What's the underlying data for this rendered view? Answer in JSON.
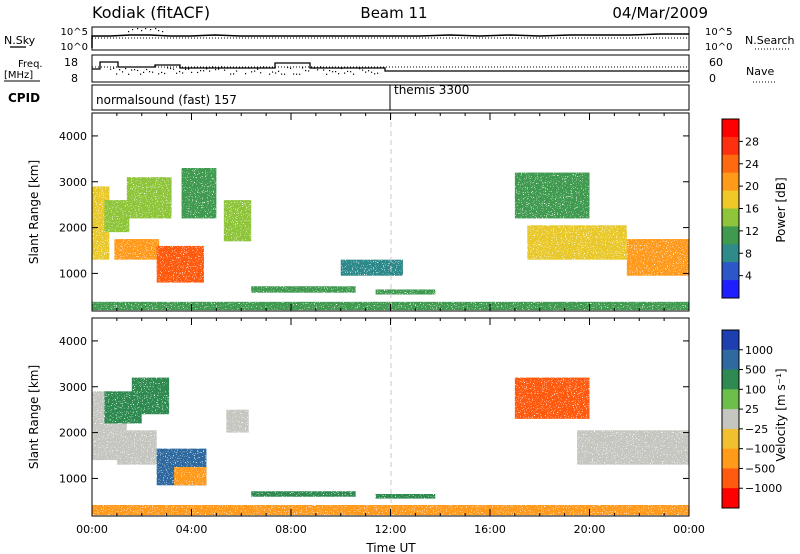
{
  "header": {
    "station": "Kodiak (fitACF)",
    "beam": "Beam 11",
    "date": "04/Mar/2009"
  },
  "top_panels": {
    "nsky": {
      "left_label": "N.Sky",
      "right_label": "N.Search",
      "left_ticks": [
        "10^5",
        "10^0"
      ],
      "right_ticks": [
        "10^5",
        "10^0"
      ]
    },
    "freq": {
      "left_label_line1": "Freq.",
      "left_label_line2": "[MHz]",
      "right_label": "Nave",
      "left_ticks": [
        "18",
        "8"
      ],
      "right_ticks": [
        "60",
        "0"
      ]
    },
    "cpid": {
      "label": "CPID",
      "modes": [
        {
          "name": "normalsound (fast) 157",
          "start_h": 0
        },
        {
          "name": "themis 3300",
          "start_h": 12
        }
      ]
    }
  },
  "chart_data": [
    {
      "type": "heatmap",
      "name": "Power",
      "xlabel": "",
      "ylabel": "Slant Range [km]",
      "xlim": [
        0,
        24
      ],
      "ylim": [
        180,
        4500
      ],
      "yticks": [
        "1000",
        "2000",
        "3000",
        "4000"
      ],
      "colorbar": {
        "label": "Power [dB]",
        "ticks": [
          "28",
          "24",
          "20",
          "16",
          "12",
          "8",
          "4"
        ],
        "range": [
          0,
          30
        ]
      },
      "regions": [
        {
          "x": [
            0.0,
            0.7
          ],
          "y": [
            1300,
            2900
          ],
          "value": 18
        },
        {
          "x": [
            0.5,
            1.5
          ],
          "y": [
            1900,
            2600
          ],
          "value": 14
        },
        {
          "x": [
            1.4,
            3.2
          ],
          "y": [
            2200,
            3100
          ],
          "value": 16
        },
        {
          "x": [
            0.9,
            2.7
          ],
          "y": [
            1300,
            1750
          ],
          "value": 22
        },
        {
          "x": [
            2.6,
            4.5
          ],
          "y": [
            800,
            1600
          ],
          "value": 27
        },
        {
          "x": [
            3.6,
            5.0
          ],
          "y": [
            2200,
            3300
          ],
          "value": 12
        },
        {
          "x": [
            5.3,
            6.4
          ],
          "y": [
            1700,
            2600
          ],
          "value": 14
        },
        {
          "x": [
            6.4,
            10.6
          ],
          "y": [
            580,
            720
          ],
          "value": 12
        },
        {
          "x": [
            11.4,
            13.8
          ],
          "y": [
            540,
            650
          ],
          "value": 10
        },
        {
          "x": [
            10.0,
            12.5
          ],
          "y": [
            950,
            1300
          ],
          "value": 8
        },
        {
          "x": [
            17.0,
            20.0
          ],
          "y": [
            2200,
            3200
          ],
          "value": 12
        },
        {
          "x": [
            17.5,
            21.5
          ],
          "y": [
            1300,
            2050
          ],
          "value": 19
        },
        {
          "x": [
            21.5,
            24.0
          ],
          "y": [
            950,
            1750
          ],
          "value": 24
        },
        {
          "x": [
            0.0,
            24.0
          ],
          "y": [
            200,
            380
          ],
          "value": 12
        }
      ]
    },
    {
      "type": "heatmap",
      "name": "Velocity",
      "xlabel": "Time UT",
      "ylabel": "Slant Range [km]",
      "xlim": [
        0,
        24
      ],
      "ylim": [
        180,
        4500
      ],
      "xticks": [
        "00:00",
        "04:00",
        "08:00",
        "12:00",
        "16:00",
        "20:00",
        "00:00"
      ],
      "yticks": [
        "1000",
        "2000",
        "3000",
        "4000"
      ],
      "colorbar": {
        "label": "Velocity [m s⁻¹]",
        "ticks": [
          "1000",
          "500",
          "100",
          "25",
          "−25",
          "−100",
          "−500",
          "−1000"
        ]
      },
      "regions": [
        {
          "x": [
            0.0,
            1.4
          ],
          "y": [
            1400,
            2900
          ],
          "value": 0
        },
        {
          "x": [
            0.5,
            2.0
          ],
          "y": [
            2200,
            2900
          ],
          "value": 150
        },
        {
          "x": [
            1.6,
            3.1
          ],
          "y": [
            2400,
            3200
          ],
          "value": 250
        },
        {
          "x": [
            1.0,
            2.6
          ],
          "y": [
            1300,
            2050
          ],
          "value": 0
        },
        {
          "x": [
            2.6,
            4.6
          ],
          "y": [
            850,
            1650
          ],
          "value": 350
        },
        {
          "x": [
            3.3,
            4.6
          ],
          "y": [
            850,
            1250
          ],
          "value": -200
        },
        {
          "x": [
            5.4,
            6.3
          ],
          "y": [
            2000,
            2500
          ],
          "value": 0
        },
        {
          "x": [
            6.4,
            10.6
          ],
          "y": [
            600,
            720
          ],
          "value": 200
        },
        {
          "x": [
            11.4,
            13.8
          ],
          "y": [
            560,
            660
          ],
          "value": 200
        },
        {
          "x": [
            17.0,
            20.0
          ],
          "y": [
            2300,
            3200
          ],
          "value": -300
        },
        {
          "x": [
            19.5,
            24.0
          ],
          "y": [
            1300,
            2050
          ],
          "value": 0
        },
        {
          "x": [
            0.0,
            24.0
          ],
          "y": [
            200,
            420
          ],
          "value": -80
        }
      ]
    }
  ]
}
